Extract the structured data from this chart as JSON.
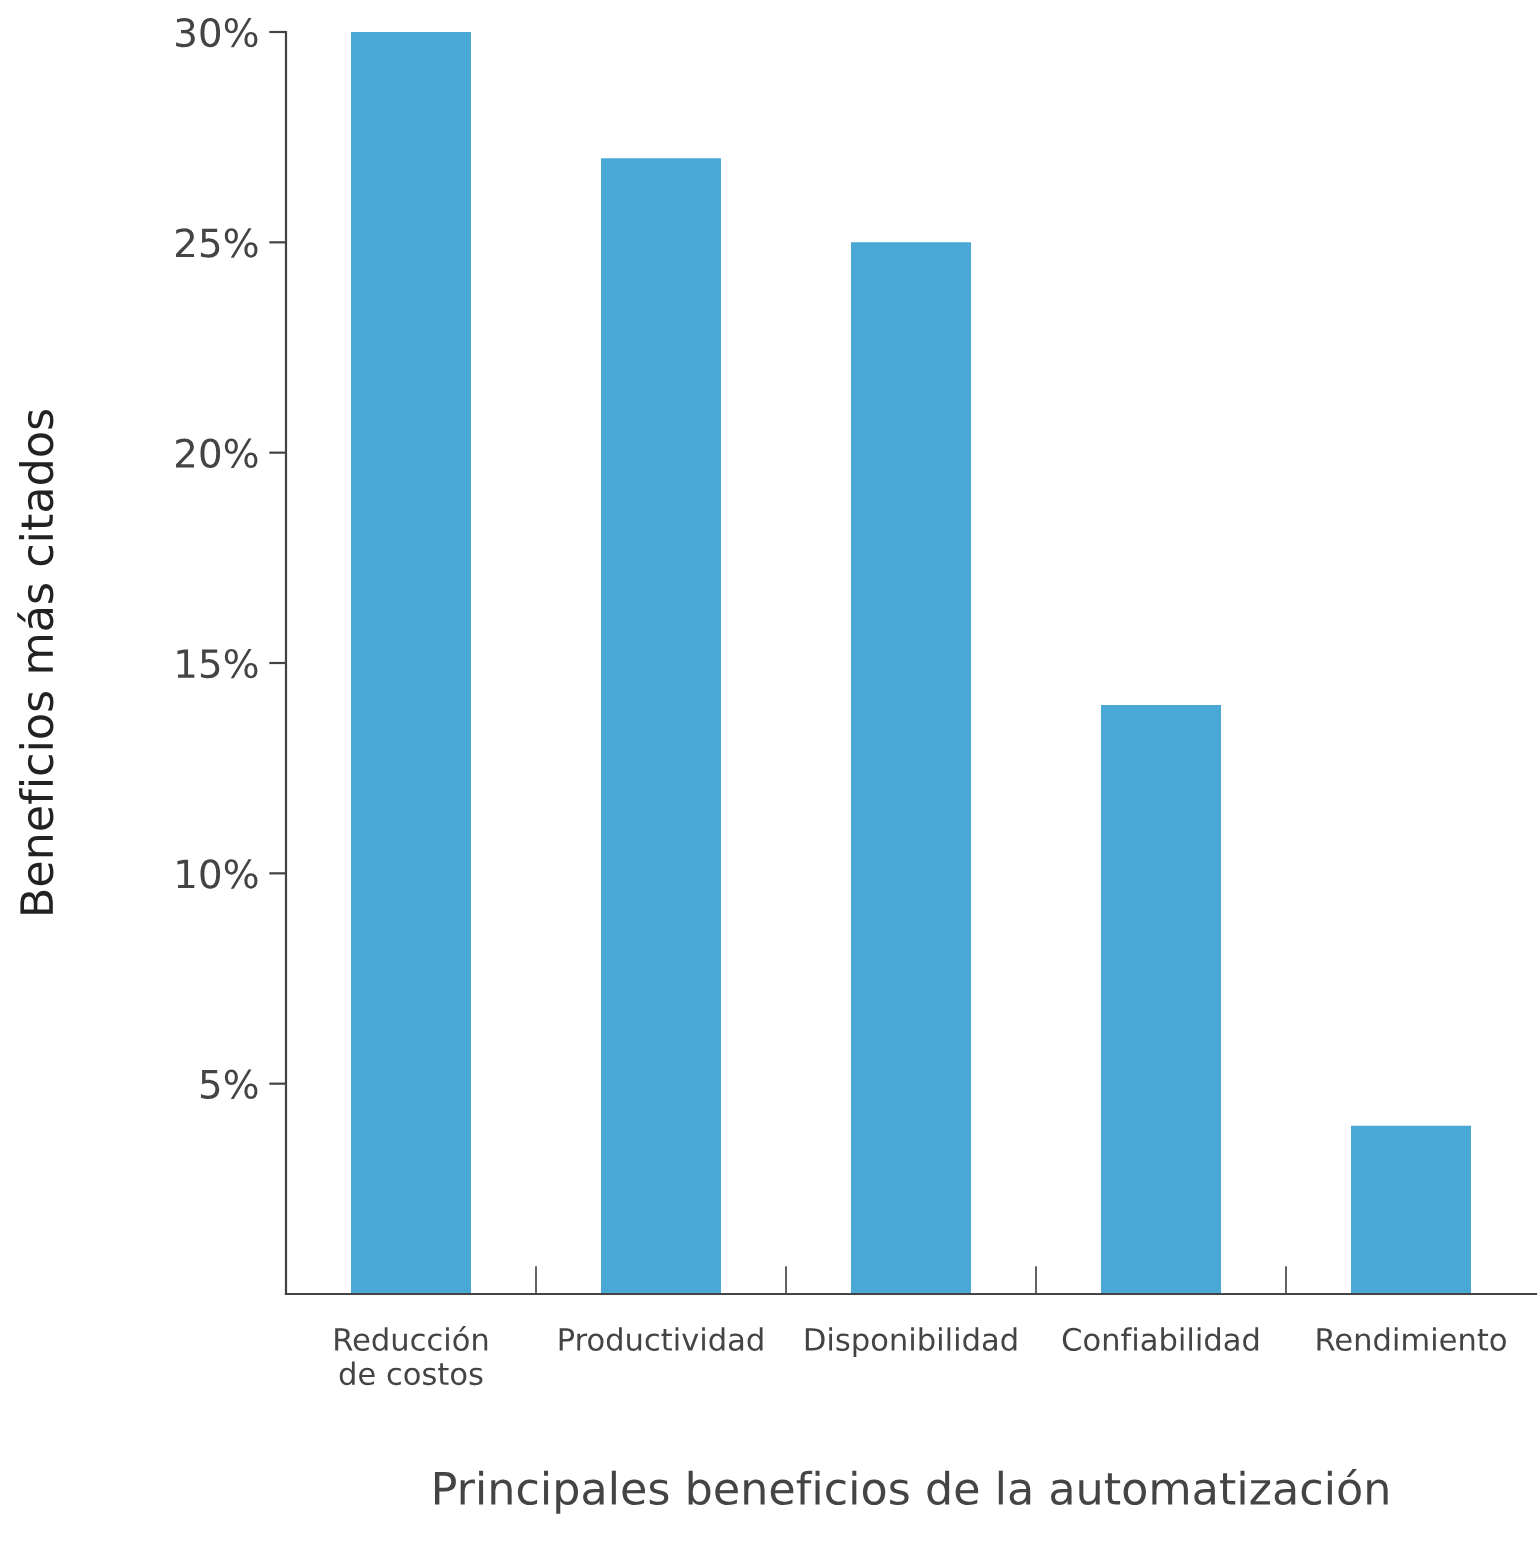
{
  "chart_data": {
    "type": "bar",
    "xlabel": "Principales beneficios de la automatización",
    "ylabel": "Beneficios más citados",
    "categories": [
      "Reducción\nde costos",
      "Productividad",
      "Disponibilidad",
      "Confiabilidad",
      "Rendimiento"
    ],
    "values": [
      30,
      27,
      25,
      14,
      4
    ],
    "color": "#4aa8d6",
    "ylim": [
      0,
      30
    ],
    "yticks": [
      {
        "value": 5,
        "label": "5%"
      },
      {
        "value": 10,
        "label": "10%"
      },
      {
        "value": 15,
        "label": "15%"
      },
      {
        "value": 20,
        "label": "20%"
      },
      {
        "value": 25,
        "label": "25%"
      },
      {
        "value": 30,
        "label": "30%"
      }
    ],
    "grid": false,
    "legend": false
  }
}
